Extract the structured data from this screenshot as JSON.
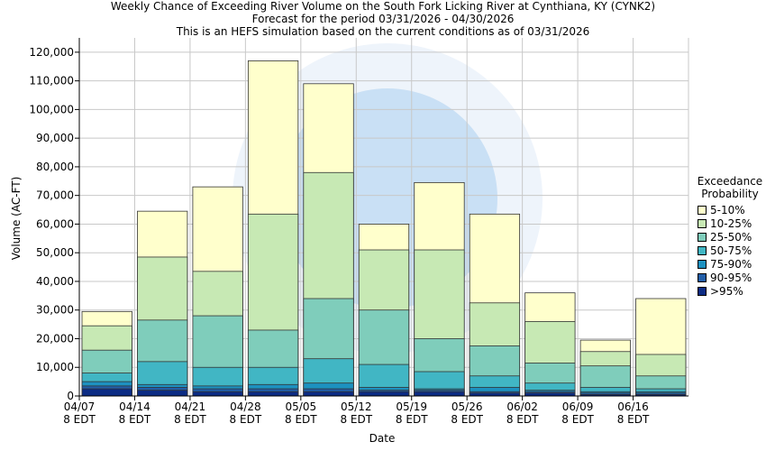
{
  "titles": {
    "line1": "Weekly Chance of Exceeding River Volume on the South Fork Licking River at Cynthiana, KY (CYNK2)",
    "line2": "Forecast for the period 03/31/2026 - 04/30/2026",
    "line3": "This is an HEFS simulation based on the current conditions as of 03/31/2026"
  },
  "chart_data": {
    "type": "bar",
    "stacked": true,
    "title": "Weekly Chance of Exceeding River Volume on the South Fork Licking River at Cynthiana, KY (CYNK2)",
    "xlabel": "Date",
    "ylabel": "Volume (AC-FT)",
    "ylim": [
      0,
      125000
    ],
    "yticks": [
      "0",
      "10,000",
      "20,000",
      "30,000",
      "40,000",
      "50,000",
      "60,000",
      "70,000",
      "80,000",
      "90,000",
      "100,000",
      "110,000",
      "120,000"
    ],
    "x_tick_labels": [
      {
        "date": "04/07",
        "tz": "8 EDT"
      },
      {
        "date": "04/14",
        "tz": "8 EDT"
      },
      {
        "date": "04/21",
        "tz": "8 EDT"
      },
      {
        "date": "04/28",
        "tz": "8 EDT"
      },
      {
        "date": "05/05",
        "tz": "8 EDT"
      },
      {
        "date": "05/12",
        "tz": "8 EDT"
      },
      {
        "date": "05/19",
        "tz": "8 EDT"
      },
      {
        "date": "05/26",
        "tz": "8 EDT"
      },
      {
        "date": "06/02",
        "tz": "8 EDT"
      },
      {
        "date": "06/09",
        "tz": "8 EDT"
      },
      {
        "date": "06/16",
        "tz": "8 EDT"
      }
    ],
    "legend_title": [
      "Exceedance",
      "Probability"
    ],
    "legend_position": "right",
    "series": [
      {
        "name": "5-10%",
        "color": "#ffffcc",
        "top": [
          29500,
          64500,
          73000,
          117000,
          109000,
          60000,
          74500,
          63500,
          36000,
          19500,
          34000
        ]
      },
      {
        "name": "10-25%",
        "color": "#c7e9b4",
        "top": [
          24500,
          48500,
          43500,
          63500,
          78000,
          51000,
          51000,
          32500,
          26000,
          15500,
          14500
        ]
      },
      {
        "name": "25-50%",
        "color": "#7fcdbb",
        "top": [
          16000,
          26500,
          28000,
          23000,
          34000,
          30000,
          20000,
          17500,
          11500,
          10500,
          7000
        ]
      },
      {
        "name": "50-75%",
        "color": "#41b6c4",
        "top": [
          8000,
          12000,
          10000,
          10000,
          13000,
          11000,
          8500,
          7000,
          4500,
          3000,
          2500
        ]
      },
      {
        "name": "75-90%",
        "color": "#1d91c0",
        "top": [
          5000,
          4000,
          3500,
          4000,
          4500,
          3000,
          2500,
          3000,
          2000,
          1500,
          1500
        ]
      },
      {
        "name": "90-95%",
        "color": "#225ea8",
        "top": [
          3500,
          3000,
          2500,
          2500,
          2500,
          2000,
          2000,
          1500,
          1500,
          1000,
          1000
        ]
      },
      {
        "name": ">95%",
        "color": "#0c2c84",
        "top": [
          2500,
          2000,
          1500,
          1500,
          1500,
          1500,
          1500,
          1000,
          1000,
          500,
          500
        ]
      }
    ],
    "grid": true
  }
}
